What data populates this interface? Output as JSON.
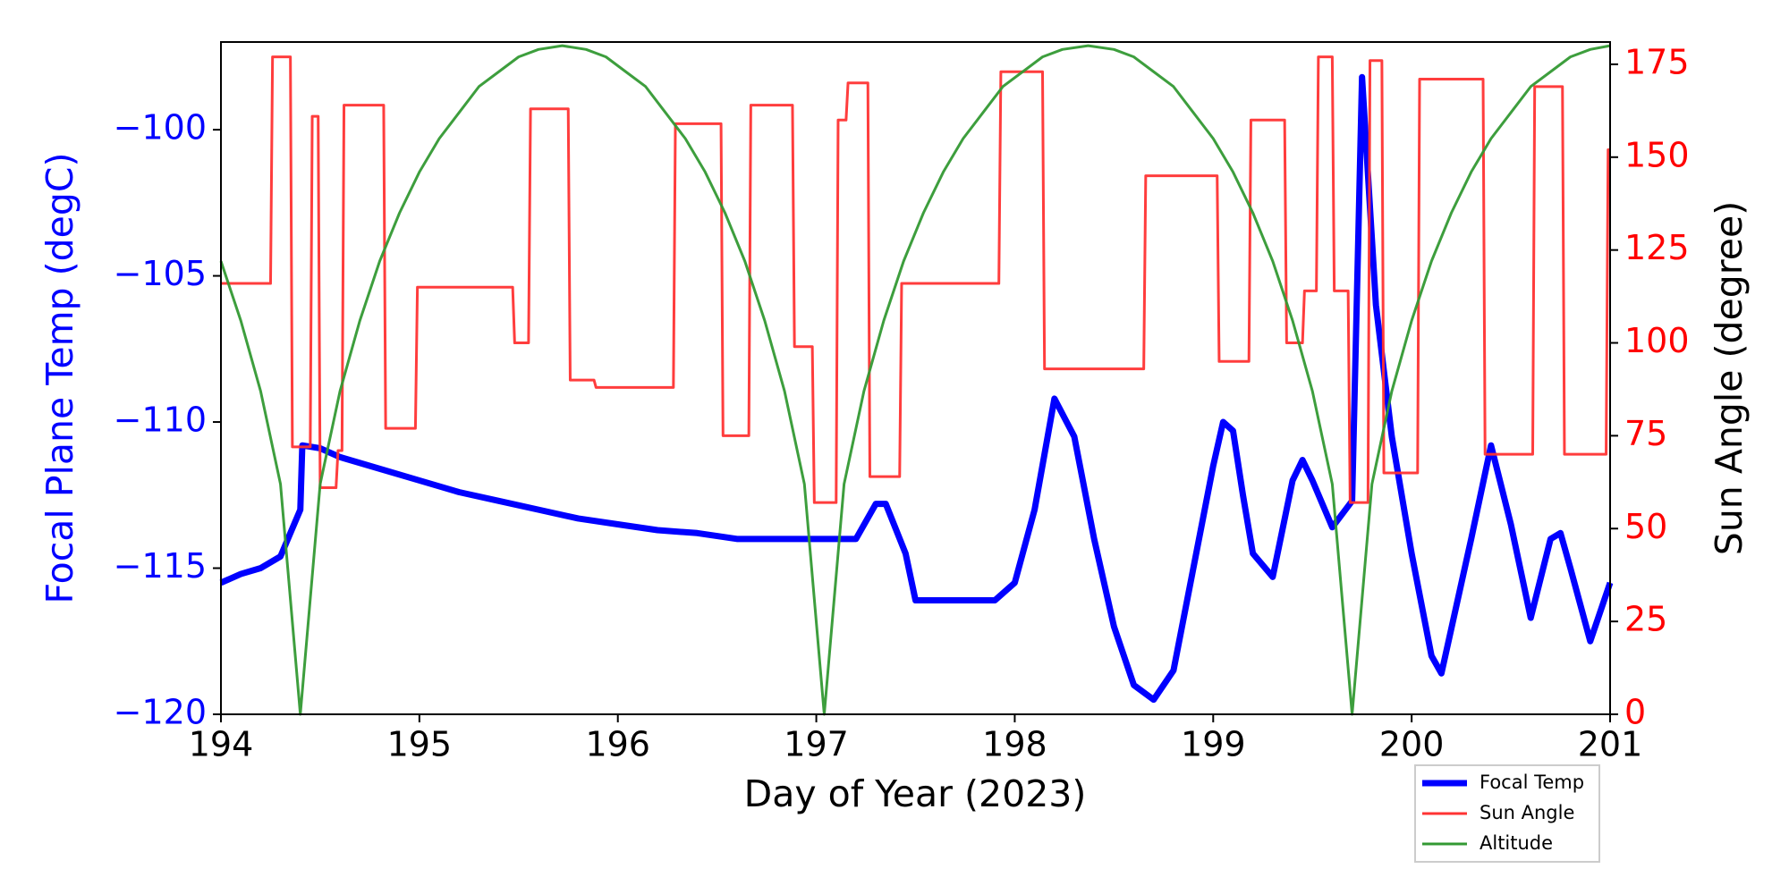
{
  "chart_data": {
    "type": "line",
    "xlabel": "Day of Year (2023)",
    "ylabel": "Focal Plane Temp (degC)",
    "y2label": "Sun Angle (degree)",
    "xlim": [
      194,
      201
    ],
    "xticks": [
      194,
      195,
      196,
      197,
      198,
      199,
      200,
      201
    ],
    "ylim": [
      -120,
      -97
    ],
    "yticks": [
      {
        "value": -120,
        "label": "−120"
      },
      {
        "value": -115,
        "label": "−115"
      },
      {
        "value": -110,
        "label": "−110"
      },
      {
        "value": -105,
        "label": "−105"
      },
      {
        "value": -100,
        "label": "−100"
      }
    ],
    "ylabel_color": "#0000ff",
    "y2lim": [
      0,
      181
    ],
    "y2ticks": [
      0,
      25,
      50,
      75,
      100,
      125,
      150,
      175
    ],
    "y2label_color": "#ff0000",
    "legend": "lower right",
    "series": [
      {
        "name": "Focal Temp",
        "color": "#0000ff",
        "width": 7,
        "x": [
          194.0,
          194.1,
          194.2,
          194.3,
          194.35,
          194.4,
          194.41,
          194.5,
          194.6,
          194.8,
          195.0,
          195.2,
          195.4,
          195.6,
          195.8,
          196.0,
          196.2,
          196.4,
          196.6,
          196.8,
          197.0,
          197.2,
          197.3,
          197.35,
          197.45,
          197.5,
          197.7,
          197.9,
          198.0,
          198.1,
          198.2,
          198.3,
          198.4,
          198.5,
          198.6,
          198.7,
          198.8,
          198.9,
          199.0,
          199.05,
          199.1,
          199.15,
          199.2,
          199.3,
          199.4,
          199.45,
          199.5,
          199.6,
          199.7,
          199.75,
          199.82,
          199.9,
          200.0,
          200.1,
          200.15,
          200.3,
          200.4,
          200.5,
          200.6,
          200.7,
          200.75,
          200.8,
          200.9,
          201.0
        ],
        "values": [
          -115.5,
          -115.2,
          -115.0,
          -114.6,
          -113.8,
          -113.0,
          -110.8,
          -110.9,
          -111.2,
          -111.6,
          -112.0,
          -112.4,
          -112.7,
          -113.0,
          -113.3,
          -113.5,
          -113.7,
          -113.8,
          -114.0,
          -114.0,
          -114.0,
          -114.0,
          -112.8,
          -112.8,
          -114.5,
          -116.1,
          -116.1,
          -116.1,
          -115.5,
          -113.0,
          -109.2,
          -110.5,
          -114.0,
          -117.0,
          -119.0,
          -119.5,
          -118.5,
          -115.0,
          -111.5,
          -110.0,
          -110.3,
          -112.5,
          -114.5,
          -115.3,
          -112.0,
          -111.3,
          -112.0,
          -113.6,
          -112.7,
          -98.2,
          -106.0,
          -110.5,
          -114.5,
          -118.0,
          -118.6,
          -114.0,
          -110.8,
          -113.5,
          -116.7,
          -114.0,
          -113.8,
          -115.0,
          -117.5,
          -115.5
        ]
      },
      {
        "name": "Sun Angle",
        "color": "#ff3333",
        "width": 3,
        "axis": "y2",
        "x": [
          194.0,
          194.25,
          194.26,
          194.35,
          194.36,
          194.45,
          194.46,
          194.49,
          194.5,
          194.58,
          194.59,
          194.61,
          194.62,
          194.82,
          194.83,
          194.98,
          194.99,
          195.47,
          195.48,
          195.55,
          195.56,
          195.75,
          195.76,
          195.88,
          195.89,
          196.28,
          196.29,
          196.52,
          196.53,
          196.66,
          196.67,
          196.88,
          196.89,
          196.98,
          196.99,
          197.1,
          197.11,
          197.15,
          197.16,
          197.26,
          197.27,
          197.42,
          197.43,
          197.92,
          197.93,
          198.14,
          198.15,
          198.65,
          198.66,
          199.02,
          199.03,
          199.18,
          199.19,
          199.36,
          199.37,
          199.45,
          199.46,
          199.52,
          199.53,
          199.6,
          199.61,
          199.68,
          199.69,
          199.78,
          199.79,
          199.85,
          199.86,
          200.03,
          200.04,
          200.36,
          200.37,
          200.61,
          200.62,
          200.76,
          200.77,
          200.98,
          200.99,
          201.0
        ],
        "values": [
          116,
          116,
          177,
          177,
          72,
          72,
          161,
          161,
          61,
          61,
          71,
          71,
          164,
          164,
          77,
          77,
          115,
          115,
          100,
          100,
          163,
          163,
          90,
          90,
          88,
          88,
          159,
          159,
          75,
          75,
          164,
          164,
          99,
          99,
          57,
          57,
          160,
          160,
          170,
          170,
          64,
          64,
          116,
          116,
          173,
          173,
          93,
          93,
          145,
          145,
          95,
          95,
          160,
          160,
          100,
          100,
          114,
          114,
          177,
          177,
          114,
          114,
          57,
          57,
          176,
          176,
          65,
          65,
          171,
          171,
          70,
          70,
          169,
          169,
          70,
          70,
          152,
          152
        ]
      },
      {
        "name": "Altitude",
        "color": "#339933",
        "width": 3,
        "axis": "y2",
        "x": [
          194.0,
          194.1,
          194.2,
          194.3,
          194.4,
          194.5,
          194.6,
          194.7,
          194.8,
          194.9,
          195.0,
          195.1,
          195.2,
          195.3,
          195.4,
          195.5,
          195.6,
          195.72,
          195.84,
          195.94,
          196.04,
          196.14,
          196.24,
          196.34,
          196.44,
          196.54,
          196.64,
          196.74,
          196.84,
          196.94,
          197.04,
          197.14,
          197.24,
          197.34,
          197.44,
          197.54,
          197.64,
          197.74,
          197.84,
          197.94,
          198.04,
          198.14,
          198.24,
          198.37,
          198.5,
          198.6,
          198.7,
          198.8,
          198.9,
          199.0,
          199.1,
          199.2,
          199.3,
          199.4,
          199.5,
          199.6,
          199.7,
          199.8,
          199.9,
          200.0,
          200.1,
          200.2,
          200.3,
          200.4,
          200.5,
          200.6,
          200.7,
          200.8,
          200.9,
          201.0
        ],
        "values": [
          122,
          106,
          87,
          62,
          0,
          62,
          87,
          106,
          122,
          135,
          146,
          155,
          162,
          169,
          173,
          177,
          179,
          180,
          179,
          177,
          173,
          169,
          162,
          155,
          146,
          135,
          122,
          106,
          87,
          62,
          0,
          62,
          87,
          106,
          122,
          135,
          146,
          155,
          162,
          169,
          173,
          177,
          179,
          180,
          179,
          177,
          173,
          169,
          162,
          155,
          146,
          135,
          122,
          106,
          87,
          62,
          0,
          62,
          87,
          106,
          122,
          135,
          146,
          155,
          162,
          169,
          173,
          177,
          179,
          180
        ]
      }
    ]
  }
}
